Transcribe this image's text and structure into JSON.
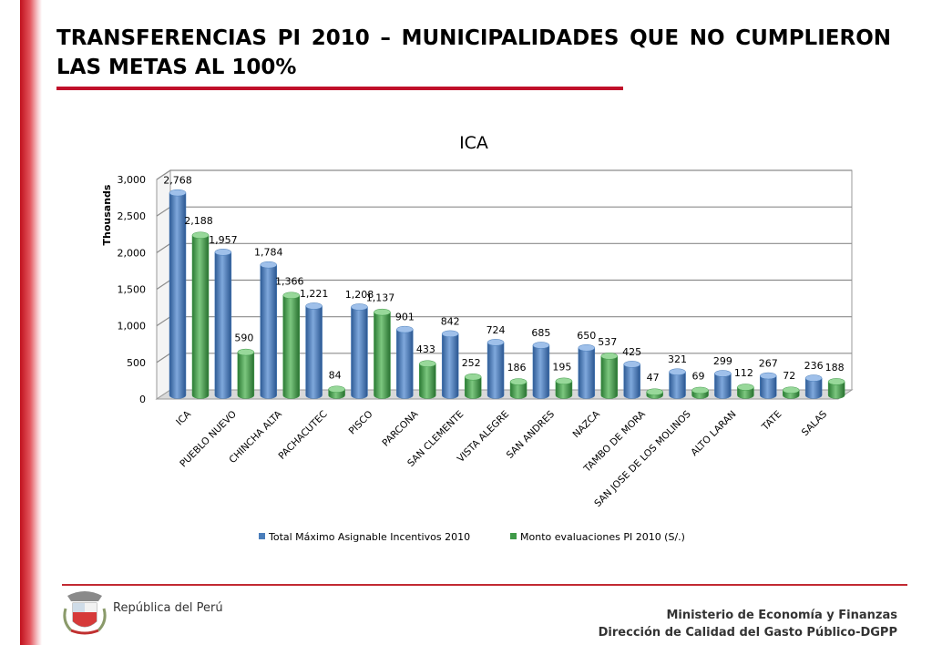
{
  "slide": {
    "title": "TRANSFERENCIAS PI 2010 – MUNICIPALIDADES QUE NO CUMPLIERON LAS METAS AL 100%",
    "footer_left": "República del Perú",
    "footer_right_line1": "Ministerio de Economía y Finanzas",
    "footer_right_line2": "Dirección de Calidad del Gasto Público-DGPP"
  },
  "colors": {
    "accent": "#c0102a",
    "series_blue": "#4a7ebb",
    "series_green": "#3f9a48"
  },
  "icons": {
    "seal": "peru-coat-of-arms-icon"
  },
  "chart_data": {
    "type": "bar",
    "title": "ICA",
    "ylabel": "Thousands",
    "xlabel": "",
    "ylim": [
      0,
      3000
    ],
    "yticks": [
      0,
      500,
      1000,
      1500,
      2000,
      2500,
      3000
    ],
    "ytick_labels": [
      "0",
      "500",
      "1,000",
      "1,500",
      "2,000",
      "2,500",
      "3,000"
    ],
    "grid": true,
    "legend_position": "bottom",
    "categories": [
      "ICA",
      "PUEBLO NUEVO",
      "CHINCHA ALTA",
      "PACHACUTEC",
      "PISCO",
      "PARCONA",
      "SAN CLEMENTE",
      "VISTA ALEGRE",
      "SAN ANDRES",
      "NAZCA",
      "TAMBO DE MORA",
      "SAN JOSE DE LOS MOLINOS",
      "ALTO LARAN",
      "TATE",
      "SALAS"
    ],
    "series": [
      {
        "name": "Total Máximo Asignable Incentivos 2010",
        "color": "#4a7ebb",
        "values": [
          2768,
          1957,
          1784,
          1221,
          1208,
          901,
          842,
          724,
          685,
          650,
          425,
          321,
          299,
          267,
          236
        ],
        "labels": [
          "2,768",
          "1,957",
          "1,784",
          "1,221",
          "1,208",
          "901",
          "842",
          "724",
          "685",
          "650",
          "425",
          "321",
          "299",
          "267",
          "236"
        ]
      },
      {
        "name": "Monto evaluaciones PI 2010 (S/.)",
        "color": "#3f9a48",
        "values": [
          2188,
          590,
          1366,
          84,
          1137,
          433,
          252,
          186,
          195,
          537,
          47,
          69,
          112,
          72,
          188
        ],
        "labels": [
          "2,188",
          "590",
          "1,366",
          "84",
          "1,137",
          "433",
          "252",
          "186",
          "195",
          "537",
          "47",
          "69",
          "112",
          "72",
          "188"
        ]
      }
    ]
  }
}
